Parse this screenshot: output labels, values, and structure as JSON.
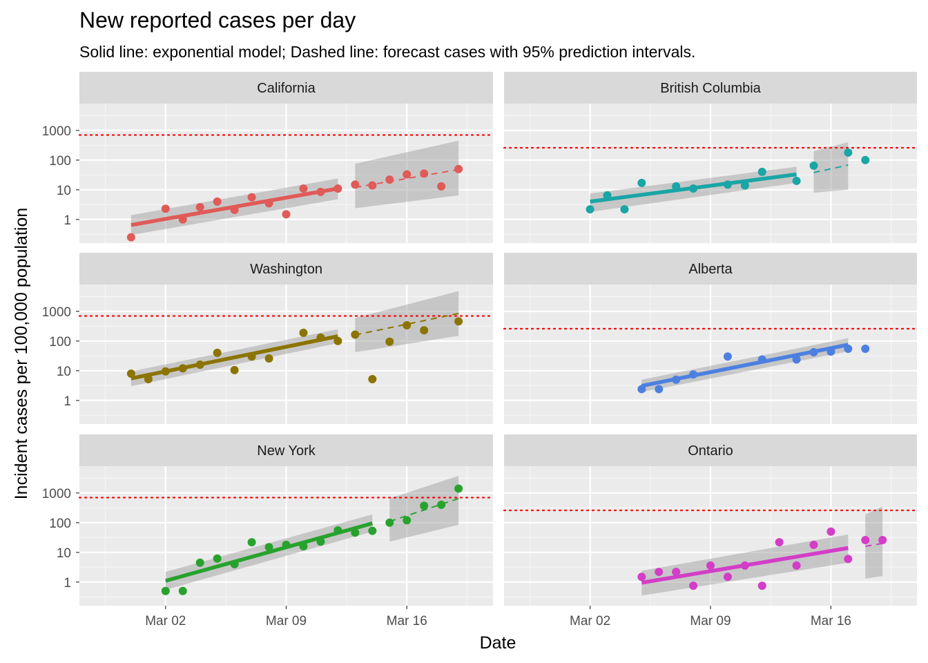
{
  "chart_data": {
    "type": "scatter",
    "title": "New reported cases per day",
    "subtitle": "Solid line: exponential model; Dashed line: forecast cases with 95% prediction intervals.",
    "xlabel": "Date",
    "ylabel": "Incident cases per 100,000 population",
    "x_scale": "date",
    "y_scale": "log10",
    "x_ticks": [
      "Mar 02",
      "Mar 09",
      "Mar 16"
    ],
    "y_ticks": [
      "1",
      "10",
      "100",
      "1000"
    ],
    "xlim": [
      "2020-02-26",
      "2020-03-21"
    ],
    "ylim": [
      0.16,
      8000
    ],
    "grid": true,
    "panels": [
      {
        "name": "California",
        "color": "#E05A57",
        "threshold": 700,
        "points": [
          {
            "x": "2020-02-29",
            "y": 0.25
          },
          {
            "x": "2020-03-02",
            "y": 2.3
          },
          {
            "x": "2020-03-03",
            "y": 1.0
          },
          {
            "x": "2020-03-04",
            "y": 2.6
          },
          {
            "x": "2020-03-05",
            "y": 4.0
          },
          {
            "x": "2020-03-06",
            "y": 2.1
          },
          {
            "x": "2020-03-07",
            "y": 5.6
          },
          {
            "x": "2020-03-08",
            "y": 3.5
          },
          {
            "x": "2020-03-09",
            "y": 1.5
          },
          {
            "x": "2020-03-10",
            "y": 11
          },
          {
            "x": "2020-03-11",
            "y": 8.5
          },
          {
            "x": "2020-03-12",
            "y": 11
          },
          {
            "x": "2020-03-13",
            "y": 15
          },
          {
            "x": "2020-03-14",
            "y": 14
          },
          {
            "x": "2020-03-15",
            "y": 22
          },
          {
            "x": "2020-03-16",
            "y": 33
          },
          {
            "x": "2020-03-17",
            "y": 35
          },
          {
            "x": "2020-03-18",
            "y": 13
          },
          {
            "x": "2020-03-19",
            "y": 50
          }
        ],
        "fit": {
          "start": "2020-02-29",
          "end": "2020-03-12",
          "y_start": 0.65,
          "y_end": 11,
          "band_start": [
            0.3,
            1.4
          ],
          "band_end": [
            4.8,
            24
          ]
        },
        "forecast": {
          "start": "2020-03-13",
          "end": "2020-03-19",
          "y_start": 12,
          "y_end": 48,
          "band_start": [
            2.4,
            75
          ],
          "band_end": [
            6.5,
            450
          ]
        }
      },
      {
        "name": "British Columbia",
        "color": "#1AA5A6",
        "threshold": 260,
        "points": [
          {
            "x": "2020-03-02",
            "y": 2.2
          },
          {
            "x": "2020-03-03",
            "y": 6.5
          },
          {
            "x": "2020-03-04",
            "y": 2.2
          },
          {
            "x": "2020-03-05",
            "y": 17
          },
          {
            "x": "2020-03-07",
            "y": 13
          },
          {
            "x": "2020-03-08",
            "y": 11
          },
          {
            "x": "2020-03-10",
            "y": 15
          },
          {
            "x": "2020-03-11",
            "y": 14
          },
          {
            "x": "2020-03-12",
            "y": 40
          },
          {
            "x": "2020-03-14",
            "y": 20
          },
          {
            "x": "2020-03-15",
            "y": 65
          },
          {
            "x": "2020-03-17",
            "y": 180
          },
          {
            "x": "2020-03-18",
            "y": 100
          }
        ],
        "fit": {
          "start": "2020-03-02",
          "end": "2020-03-14",
          "y_start": 4.0,
          "y_end": 33,
          "band_start": [
            1.8,
            7.5
          ],
          "band_end": [
            17,
            60
          ]
        },
        "forecast": {
          "start": "2020-03-15",
          "end": "2020-03-17",
          "y_start": 38,
          "y_end": 68,
          "band_start": [
            8,
            200
          ],
          "band_end": [
            10,
            400
          ]
        }
      },
      {
        "name": "Washington",
        "color": "#8B7400",
        "threshold": 700,
        "points": [
          {
            "x": "2020-02-29",
            "y": 8
          },
          {
            "x": "2020-03-01",
            "y": 5.2
          },
          {
            "x": "2020-03-02",
            "y": 9.5
          },
          {
            "x": "2020-03-03",
            "y": 12
          },
          {
            "x": "2020-03-04",
            "y": 16
          },
          {
            "x": "2020-03-05",
            "y": 40
          },
          {
            "x": "2020-03-06",
            "y": 10.5
          },
          {
            "x": "2020-03-07",
            "y": 30
          },
          {
            "x": "2020-03-08",
            "y": 26
          },
          {
            "x": "2020-03-10",
            "y": 190
          },
          {
            "x": "2020-03-11",
            "y": 130
          },
          {
            "x": "2020-03-12",
            "y": 100
          },
          {
            "x": "2020-03-13",
            "y": 165
          },
          {
            "x": "2020-03-14",
            "y": 5.2
          },
          {
            "x": "2020-03-15",
            "y": 95
          },
          {
            "x": "2020-03-16",
            "y": 340
          },
          {
            "x": "2020-03-17",
            "y": 230
          },
          {
            "x": "2020-03-19",
            "y": 460
          }
        ],
        "fit": {
          "start": "2020-02-29",
          "end": "2020-03-12",
          "y_start": 5.5,
          "y_end": 145,
          "band_start": [
            3.0,
            9.5
          ],
          "band_end": [
            85,
            250
          ]
        },
        "forecast": {
          "start": "2020-03-13",
          "end": "2020-03-19",
          "y_start": 160,
          "y_end": 850,
          "band_start": [
            42,
            600
          ],
          "band_end": [
            150,
            4800
          ]
        }
      },
      {
        "name": "Alberta",
        "color": "#4C7FE0",
        "threshold": 260,
        "points": [
          {
            "x": "2020-03-05",
            "y": 2.4
          },
          {
            "x": "2020-03-06",
            "y": 2.4
          },
          {
            "x": "2020-03-07",
            "y": 5
          },
          {
            "x": "2020-03-08",
            "y": 7.5
          },
          {
            "x": "2020-03-10",
            "y": 30
          },
          {
            "x": "2020-03-12",
            "y": 24
          },
          {
            "x": "2020-03-14",
            "y": 24
          },
          {
            "x": "2020-03-15",
            "y": 42
          },
          {
            "x": "2020-03-16",
            "y": 44
          },
          {
            "x": "2020-03-17",
            "y": 55
          },
          {
            "x": "2020-03-18",
            "y": 55
          }
        ],
        "fit": {
          "start": "2020-03-05",
          "end": "2020-03-17",
          "y_start": 3.1,
          "y_end": 75,
          "band_start": [
            1.9,
            5.0
          ],
          "band_end": [
            45,
            125
          ]
        }
      },
      {
        "name": "New York",
        "color": "#27A22D",
        "threshold": 700,
        "points": [
          {
            "x": "2020-03-02",
            "y": 0.5
          },
          {
            "x": "2020-03-03",
            "y": 0.5
          },
          {
            "x": "2020-03-04",
            "y": 4.5
          },
          {
            "x": "2020-03-05",
            "y": 6.2
          },
          {
            "x": "2020-03-06",
            "y": 4
          },
          {
            "x": "2020-03-07",
            "y": 22
          },
          {
            "x": "2020-03-08",
            "y": 15
          },
          {
            "x": "2020-03-09",
            "y": 18
          },
          {
            "x": "2020-03-10",
            "y": 16
          },
          {
            "x": "2020-03-11",
            "y": 23
          },
          {
            "x": "2020-03-12",
            "y": 55
          },
          {
            "x": "2020-03-13",
            "y": 46
          },
          {
            "x": "2020-03-14",
            "y": 53
          },
          {
            "x": "2020-03-15",
            "y": 100
          },
          {
            "x": "2020-03-16",
            "y": 120
          },
          {
            "x": "2020-03-17",
            "y": 370
          },
          {
            "x": "2020-03-18",
            "y": 400
          },
          {
            "x": "2020-03-19",
            "y": 1400
          }
        ],
        "fit": {
          "start": "2020-03-02",
          "end": "2020-03-14",
          "y_start": 1.1,
          "y_end": 95,
          "band_start": [
            0.55,
            2.2
          ],
          "band_end": [
            50,
            190
          ]
        },
        "forecast": {
          "start": "2020-03-15",
          "end": "2020-03-19",
          "y_start": 110,
          "y_end": 650,
          "band_start": [
            23,
            650
          ],
          "band_end": [
            85,
            3800
          ]
        }
      },
      {
        "name": "Ontario",
        "color": "#D33DC7",
        "threshold": 260,
        "points": [
          {
            "x": "2020-03-05",
            "y": 1.5
          },
          {
            "x": "2020-03-06",
            "y": 2.2
          },
          {
            "x": "2020-03-07",
            "y": 2.2
          },
          {
            "x": "2020-03-08",
            "y": 0.75
          },
          {
            "x": "2020-03-09",
            "y": 3.6
          },
          {
            "x": "2020-03-10",
            "y": 1.5
          },
          {
            "x": "2020-03-11",
            "y": 3.6
          },
          {
            "x": "2020-03-12",
            "y": 0.75
          },
          {
            "x": "2020-03-13",
            "y": 22
          },
          {
            "x": "2020-03-14",
            "y": 3.6
          },
          {
            "x": "2020-03-15",
            "y": 18
          },
          {
            "x": "2020-03-16",
            "y": 50
          },
          {
            "x": "2020-03-17",
            "y": 6
          },
          {
            "x": "2020-03-18",
            "y": 26
          },
          {
            "x": "2020-03-19",
            "y": 26
          }
        ],
        "fit": {
          "start": "2020-03-05",
          "end": "2020-03-17",
          "y_start": 0.95,
          "y_end": 14,
          "band_start": [
            0.35,
            2.4
          ],
          "band_end": [
            4.5,
            40
          ]
        },
        "forecast": {
          "start": "2020-03-18",
          "end": "2020-03-19",
          "y_start": 16,
          "y_end": 20,
          "band_start": [
            1.3,
            190
          ],
          "band_end": [
            1.6,
            350
          ]
        }
      }
    ]
  }
}
